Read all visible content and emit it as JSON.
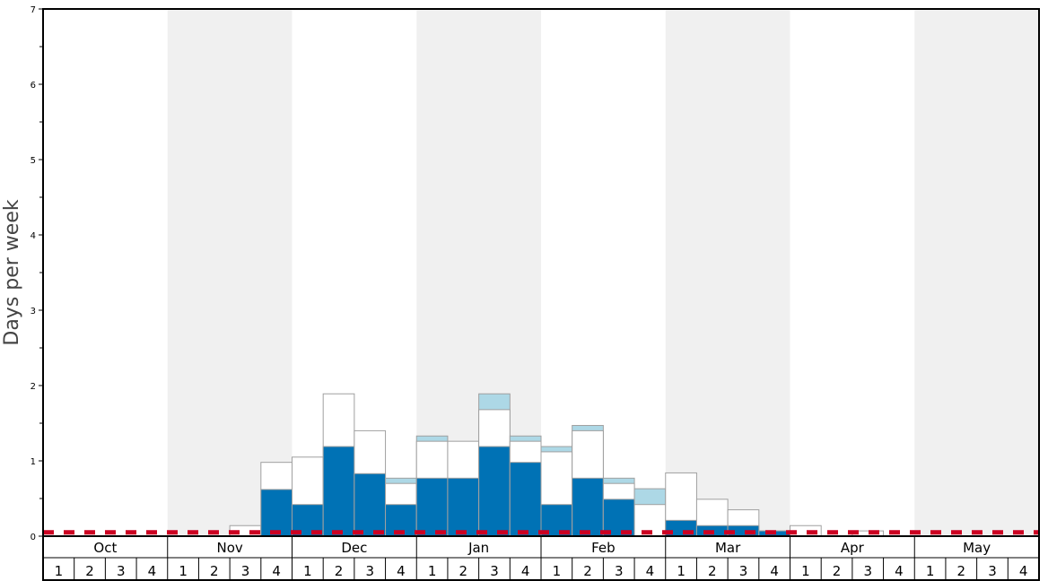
{
  "chart_data": {
    "type": "bar",
    "title": "",
    "xlabel": "",
    "ylabel": "Days per week",
    "ylim": [
      0,
      7
    ],
    "yticks": [
      0,
      1,
      2,
      3,
      4,
      5,
      6,
      7
    ],
    "months": [
      "Oct",
      "Nov",
      "Dec",
      "Jan",
      "Feb",
      "Mar",
      "Apr",
      "May"
    ],
    "weeks_per_month": [
      "1",
      "2",
      "3",
      "4"
    ],
    "threshold_line": 0.05,
    "colors": {
      "solid": "#0072b5",
      "light": "#add8e6",
      "outline_fill": "#ffffff",
      "outline_stroke": "#a0a0a0",
      "threshold": "#cc0022",
      "band": "#f0f0f0"
    },
    "series": [
      {
        "values": [
          0,
          0,
          0,
          0,
          0,
          0,
          0,
          0.62,
          0.42,
          1.19,
          0.83,
          0.42,
          0.77,
          0.77,
          1.19,
          0.98,
          0.42,
          0.77,
          0.49,
          0,
          0.21,
          0.14,
          0.14,
          0.07,
          0,
          0,
          0,
          0,
          0,
          0,
          0,
          0
        ]
      },
      {
        "values": [
          0,
          0,
          0,
          0,
          0,
          0,
          0,
          0,
          0,
          0,
          0,
          0.77,
          1.33,
          0,
          1.89,
          1.33,
          1.19,
          1.47,
          0.77,
          0.63,
          0,
          0,
          0,
          0,
          0,
          0,
          0,
          0,
          0,
          0,
          0,
          0
        ]
      },
      {
        "values": [
          0,
          0,
          0,
          0,
          0,
          0,
          0.14,
          0.98,
          1.05,
          1.89,
          1.4,
          0.7,
          1.26,
          1.26,
          1.68,
          1.26,
          1.12,
          1.4,
          0.7,
          0.42,
          0.84,
          0.49,
          0.35,
          0.07,
          0.14,
          0,
          0.07,
          0,
          0,
          0,
          0,
          0
        ]
      }
    ]
  }
}
